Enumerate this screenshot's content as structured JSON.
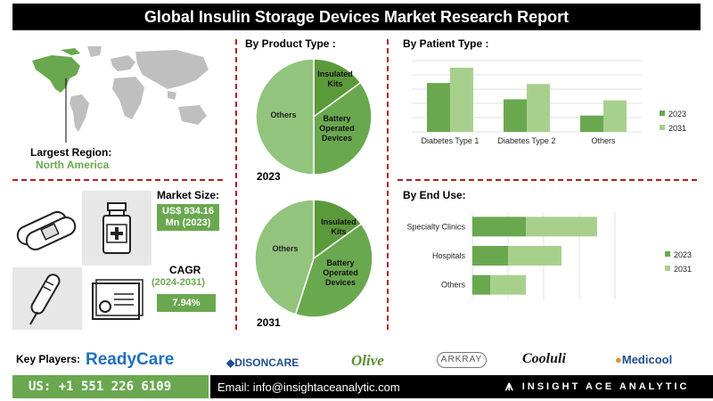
{
  "title": "Global Insulin Storage Devices Market Research Report",
  "region": {
    "label": "Largest Region:",
    "value": "North America"
  },
  "market_size": {
    "label": "Market Size:",
    "value_line1": "US$ 934.16",
    "value_line2": "Mn (2023)"
  },
  "cagr": {
    "label": "CAGR",
    "period": "(2024-2031)",
    "value": "7.94%"
  },
  "sections": {
    "product_type": "By Product Type :",
    "patient_type": "By Patient Type :",
    "end_use": "By End Use:"
  },
  "key_players": {
    "label": "Key Players:",
    "logos": [
      "ReadyCare",
      "DISONCARE",
      "Olive",
      "ARKRAY",
      "Cooluli",
      "Medicool"
    ]
  },
  "footer": {
    "phone": "US: +1 551 226 6109",
    "email": "Email: info@insightaceanalytic.com",
    "brand": "INSIGHT ACE ANALYTIC"
  },
  "colors": {
    "dark_green": "#6aa84f",
    "light_green": "#a8d08d",
    "mid_green": "#8fbc6a",
    "accent_red": "#b02020"
  },
  "icons": [
    "world-map-icon",
    "bandage-icon",
    "insulin-vial-icon",
    "thermometer-pen-icon",
    "storage-case-icon"
  ],
  "chart_data": [
    {
      "type": "pie",
      "year": "2023",
      "labels": [
        "Insulated Kits",
        "Battery Operated Devices",
        "Others"
      ],
      "values": [
        15,
        35,
        50
      ]
    },
    {
      "type": "pie",
      "year": "2031",
      "labels": [
        "Insulated Kits",
        "Battery Operated Devices",
        "Others"
      ],
      "values": [
        15,
        40,
        45
      ]
    },
    {
      "type": "bar",
      "orientation": "vertical",
      "categories": [
        "Diabetes Type 1",
        "Diabetes Type 2",
        "Others"
      ],
      "series": [
        {
          "name": "2023",
          "values": [
            48,
            32,
            16
          ]
        },
        {
          "name": "2031",
          "values": [
            63,
            47,
            31
          ]
        }
      ],
      "ylim": [
        0,
        70
      ],
      "grid": true,
      "legend": "right"
    },
    {
      "type": "bar",
      "orientation": "horizontal-stacked",
      "categories": [
        "Specialty Clinics",
        "Hospitals",
        "Others"
      ],
      "series": [
        {
          "name": "2023",
          "values": [
            60,
            40,
            20
          ]
        },
        {
          "name": "2031",
          "values": [
            80,
            60,
            40
          ]
        }
      ],
      "xlim": [
        0,
        160
      ],
      "grid": true,
      "legend": "right"
    }
  ]
}
